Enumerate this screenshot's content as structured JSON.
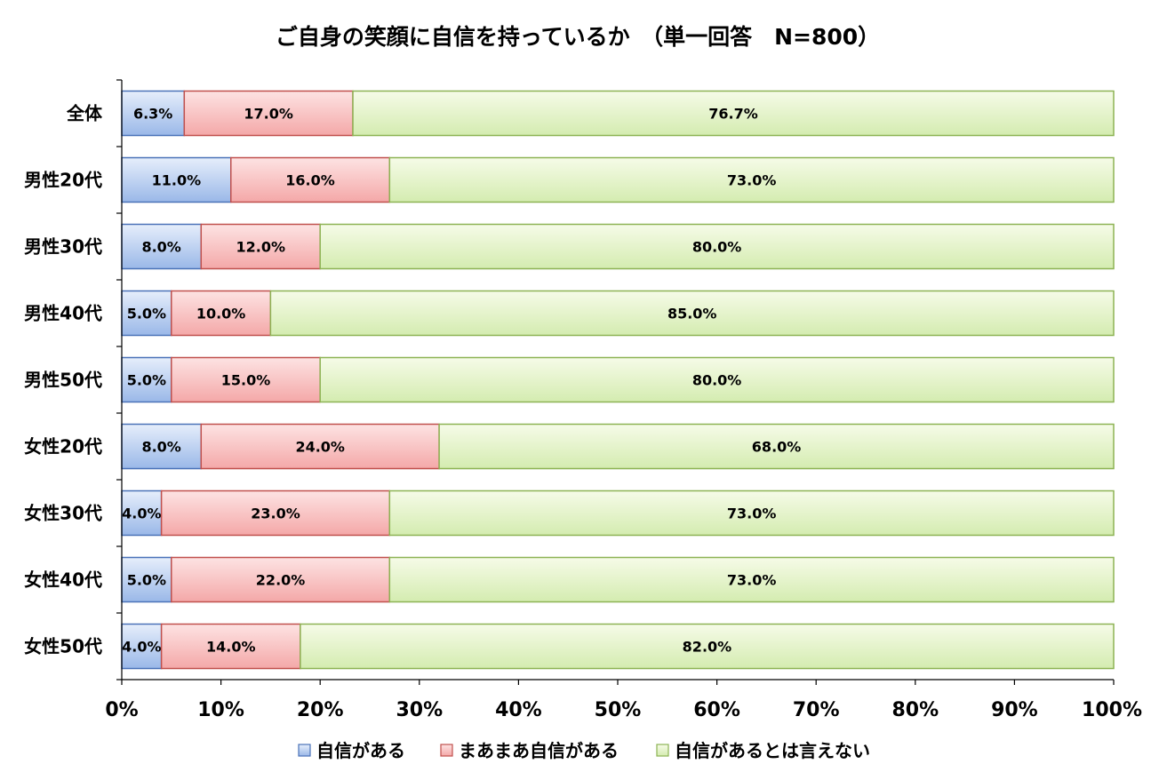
{
  "chart_data": {
    "type": "bar",
    "orientation": "horizontal",
    "stacked": "percent",
    "title": "ご自身の笑顔に自信を持っているか　（単一回答　N=800）",
    "categories": [
      "全体",
      "男性20代",
      "男性30代",
      "男性40代",
      "男性50代",
      "女性20代",
      "女性30代",
      "女性40代",
      "女性50代"
    ],
    "series": [
      {
        "name": "自信がある",
        "values": [
          6.3,
          11.0,
          8.0,
          5.0,
          5.0,
          8.0,
          4.0,
          5.0,
          4.0
        ],
        "labels": [
          "6.3%",
          "11.0%",
          "8.0%",
          "5.0%",
          "5.0%",
          "8.0%",
          "4.0%",
          "5.0%",
          "4.0%"
        ]
      },
      {
        "name": "まあまあ自信がある",
        "values": [
          17.0,
          16.0,
          12.0,
          10.0,
          15.0,
          24.0,
          23.0,
          22.0,
          14.0
        ],
        "labels": [
          "17.0%",
          "16.0%",
          "12.0%",
          "10.0%",
          "15.0%",
          "24.0%",
          "23.0%",
          "22.0%",
          "14.0%"
        ]
      },
      {
        "name": "自信があるとは言えない",
        "values": [
          76.7,
          73.0,
          80.0,
          85.0,
          80.0,
          68.0,
          73.0,
          73.0,
          82.0
        ],
        "labels": [
          "76.7%",
          "73.0%",
          "80.0%",
          "85.0%",
          "80.0%",
          "68.0%",
          "73.0%",
          "73.0%",
          "82.0%"
        ]
      }
    ],
    "xlim": [
      0,
      100
    ],
    "x_ticks": [
      "0%",
      "10%",
      "20%",
      "30%",
      "40%",
      "50%",
      "60%",
      "70%",
      "80%",
      "90%",
      "100%"
    ],
    "grid": false,
    "legend_position": "bottom",
    "colors": {
      "series_fill_top": [
        "#e6eefb",
        "#fde3e3",
        "#f6fbe8"
      ],
      "series_fill_bottom": [
        "#9ab8e8",
        "#f4a8a8",
        "#d4ecb0"
      ],
      "series_stroke": [
        "#4a72b8",
        "#c0504d",
        "#8db354"
      ],
      "axis": "#000000"
    }
  }
}
